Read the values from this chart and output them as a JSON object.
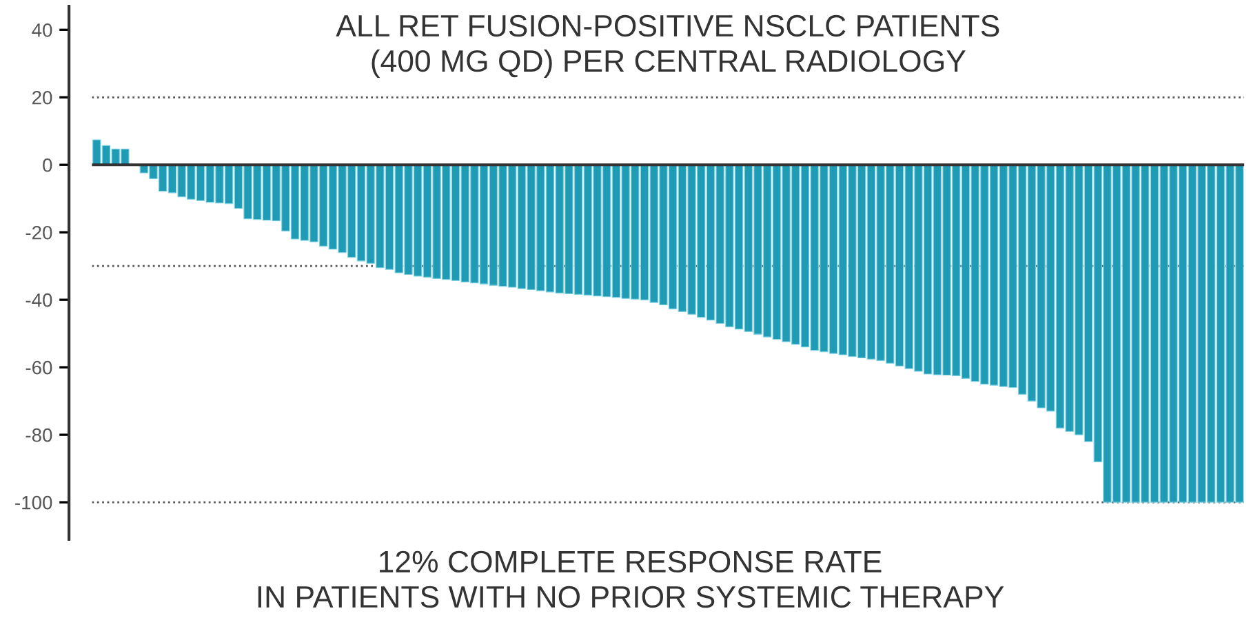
{
  "chart_data": {
    "type": "bar",
    "title": "ALL RET FUSION-POSITIVE NSCLC PATIENTS\n(400 MG QD) PER CENTRAL RADIOLOGY",
    "annotations": [
      "12% COMPLETE RESPONSE RATE\nIN PATIENTS WITH NO PRIOR SYSTEMIC THERAPY"
    ],
    "categories": [
      null,
      null,
      null,
      null,
      null,
      null,
      null,
      null,
      null,
      null,
      null,
      null,
      null,
      null,
      null,
      null,
      null,
      null,
      null,
      null,
      null,
      null,
      null,
      null,
      null,
      null,
      null,
      null,
      null,
      null,
      null,
      null,
      null,
      null,
      null,
      null,
      null,
      null,
      null,
      null,
      null,
      null,
      null,
      null,
      null,
      null,
      null,
      null,
      null,
      null,
      null,
      null,
      null,
      null,
      null,
      null,
      null,
      null,
      null,
      null,
      null,
      null,
      null,
      null,
      null,
      null,
      null,
      null,
      null,
      null,
      null,
      null,
      null,
      null,
      null,
      null,
      null,
      null,
      null,
      null,
      null,
      null,
      null,
      null,
      null,
      null,
      null,
      null,
      null,
      null,
      null,
      null,
      null,
      null,
      null,
      null,
      null,
      null,
      null,
      null,
      null,
      null,
      null,
      null,
      null,
      null,
      null,
      null,
      null,
      null,
      null,
      null,
      null,
      null,
      null,
      null,
      null,
      null,
      null,
      null,
      null,
      null
    ],
    "values": [
      7.4,
      5.7,
      4.7,
      4.7,
      null,
      -2.4,
      -4.1,
      -7.8,
      -8.3,
      -9.5,
      -10.2,
      -10.6,
      -11.1,
      -11.3,
      -11.5,
      -12.9,
      -16,
      -16.2,
      -16.4,
      -16.6,
      -19.6,
      -22,
      -22.4,
      -22.8,
      -24.1,
      -25,
      -26,
      -27.4,
      -28.5,
      -29.2,
      -30.5,
      -31,
      -32,
      -32.5,
      -33,
      -33.3,
      -33.7,
      -34,
      -34.3,
      -34.7,
      -35,
      -35.3,
      -35.7,
      -36,
      -36.3,
      -36.7,
      -37,
      -37.3,
      -37.7,
      -38,
      -38.2,
      -38.4,
      -38.6,
      -38.9,
      -39.1,
      -39.3,
      -39.6,
      -39.8,
      -40,
      -40.8,
      -41.5,
      -42.7,
      -43.5,
      -44.3,
      -45.2,
      -46,
      -47,
      -48,
      -48.7,
      -49.4,
      -50.2,
      -51,
      -51.7,
      -52.4,
      -53.2,
      -54,
      -55,
      -55.4,
      -55.9,
      -56.3,
      -56.8,
      -57.2,
      -57.6,
      -58,
      -58.8,
      -59.6,
      -60.4,
      -61.2,
      -62,
      -62.2,
      -62.3,
      -62.5,
      -63.3,
      -64.2,
      -65,
      -65.3,
      -65.7,
      -66,
      -68,
      -70,
      -72,
      -73,
      -78,
      -79,
      -80,
      -82,
      -88,
      -100,
      -100,
      -100,
      -100,
      -100,
      -100,
      -100,
      -100,
      -100,
      -100,
      -100,
      -100,
      -100,
      -100,
      -100
    ],
    "color": "#1f9bb6",
    "ylim": [
      -111,
      47
    ],
    "yticks": [
      -100,
      -80,
      -60,
      -40,
      -20,
      0,
      20,
      40
    ],
    "tick_labels": "y",
    "grid": false,
    "ref_lines": [
      {
        "axis": "y",
        "value": 20,
        "line_style": "dotted",
        "color": "#555555"
      },
      {
        "axis": "y",
        "value": -30,
        "line_style": "dotted",
        "color": "#555555"
      },
      {
        "axis": "y",
        "value": -100,
        "line_style": "dotted",
        "color": "#555555"
      },
      {
        "axis": "y",
        "value": 0,
        "line_style": "solid",
        "color": "#333333"
      }
    ]
  }
}
